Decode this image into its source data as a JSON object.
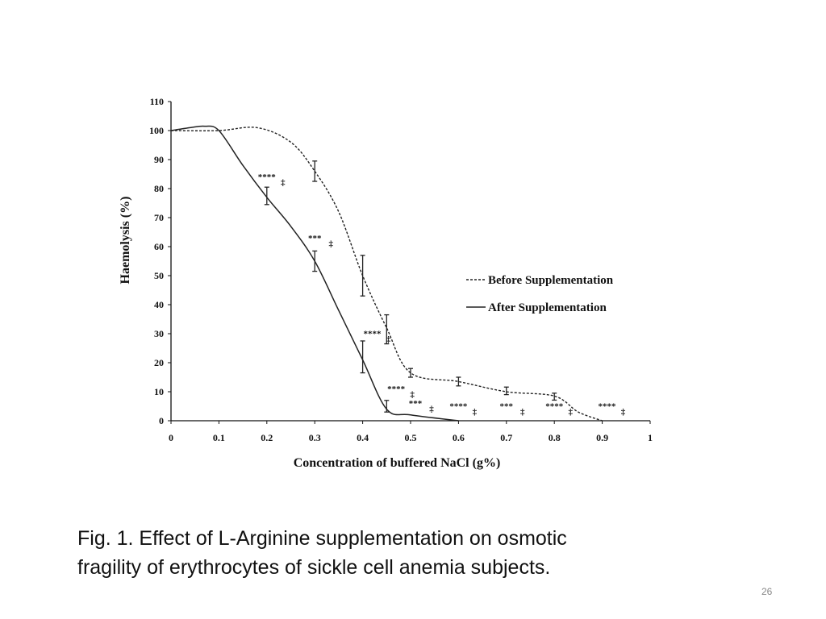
{
  "chart_data": {
    "type": "line",
    "xlabel": "Concentration of buffered NaCl (g%)",
    "ylabel": "Haemolysis (%)",
    "xlim": [
      0,
      1
    ],
    "ylim": [
      0,
      110
    ],
    "x_ticks": [
      "0",
      "0.1",
      "0.2",
      "0.3",
      "0.4",
      "0.5",
      "0.6",
      "0.7",
      "0.8",
      "0.9",
      "1"
    ],
    "y_ticks": [
      "0",
      "10",
      "20",
      "30",
      "40",
      "50",
      "60",
      "70",
      "80",
      "90",
      "100",
      "110"
    ],
    "grid": false,
    "legend_position": "right",
    "series": [
      {
        "name": "Before Supplementation",
        "style": "dashed",
        "color": "#222222",
        "x": [
          0,
          0.1,
          0.18,
          0.25,
          0.3,
          0.35,
          0.4,
          0.45,
          0.5,
          0.6,
          0.7,
          0.8,
          0.85,
          0.9
        ],
        "y": [
          100,
          100,
          101,
          96,
          86,
          72,
          50,
          32,
          16.5,
          13.5,
          10,
          8.5,
          3,
          0
        ],
        "error_bars": [
          {
            "x": 0.3,
            "y": 86,
            "err": 3.5
          },
          {
            "x": 0.4,
            "y": 50,
            "err": 7
          },
          {
            "x": 0.45,
            "y": 31.5,
            "err": 5
          },
          {
            "x": 0.5,
            "y": 16.5,
            "err": 1.5
          },
          {
            "x": 0.6,
            "y": 13.5,
            "err": 1.5
          },
          {
            "x": 0.7,
            "y": 10.3,
            "err": 1.3
          },
          {
            "x": 0.8,
            "y": 8.3,
            "err": 1.2
          }
        ]
      },
      {
        "name": "After Supplementation",
        "style": "solid",
        "color": "#222222",
        "x": [
          0,
          0.04,
          0.07,
          0.1,
          0.15,
          0.2,
          0.25,
          0.3,
          0.35,
          0.4,
          0.45,
          0.5,
          0.6
        ],
        "y": [
          100,
          101,
          101.5,
          100,
          88,
          77,
          67,
          55,
          38,
          21,
          4,
          2,
          0
        ],
        "error_bars": [
          {
            "x": 0.2,
            "y": 77.5,
            "err": 3
          },
          {
            "x": 0.3,
            "y": 55,
            "err": 3.5
          },
          {
            "x": 0.4,
            "y": 22,
            "err": 5.5
          },
          {
            "x": 0.45,
            "y": 5,
            "err": 2
          }
        ]
      }
    ],
    "annotations": [
      {
        "x": 0.2,
        "y": 83,
        "text": "****"
      },
      {
        "x": 0.3,
        "y": 62,
        "text": "***"
      },
      {
        "x": 0.42,
        "y": 29,
        "text": "****"
      },
      {
        "x": 0.47,
        "y": 10,
        "text": "****"
      },
      {
        "x": 0.51,
        "y": 5,
        "text": "***"
      },
      {
        "x": 0.6,
        "y": 4,
        "text": "****"
      },
      {
        "x": 0.7,
        "y": 4,
        "text": "***"
      },
      {
        "x": 0.8,
        "y": 4,
        "text": "****"
      },
      {
        "x": 0.91,
        "y": 4,
        "text": "****"
      }
    ]
  },
  "caption": {
    "line1": "Fig. 1. Effect of L-Arginine supplementation on osmotic",
    "line2": "fragility of erythrocytes of sickle cell anemia subjects."
  },
  "slide_number": "26"
}
